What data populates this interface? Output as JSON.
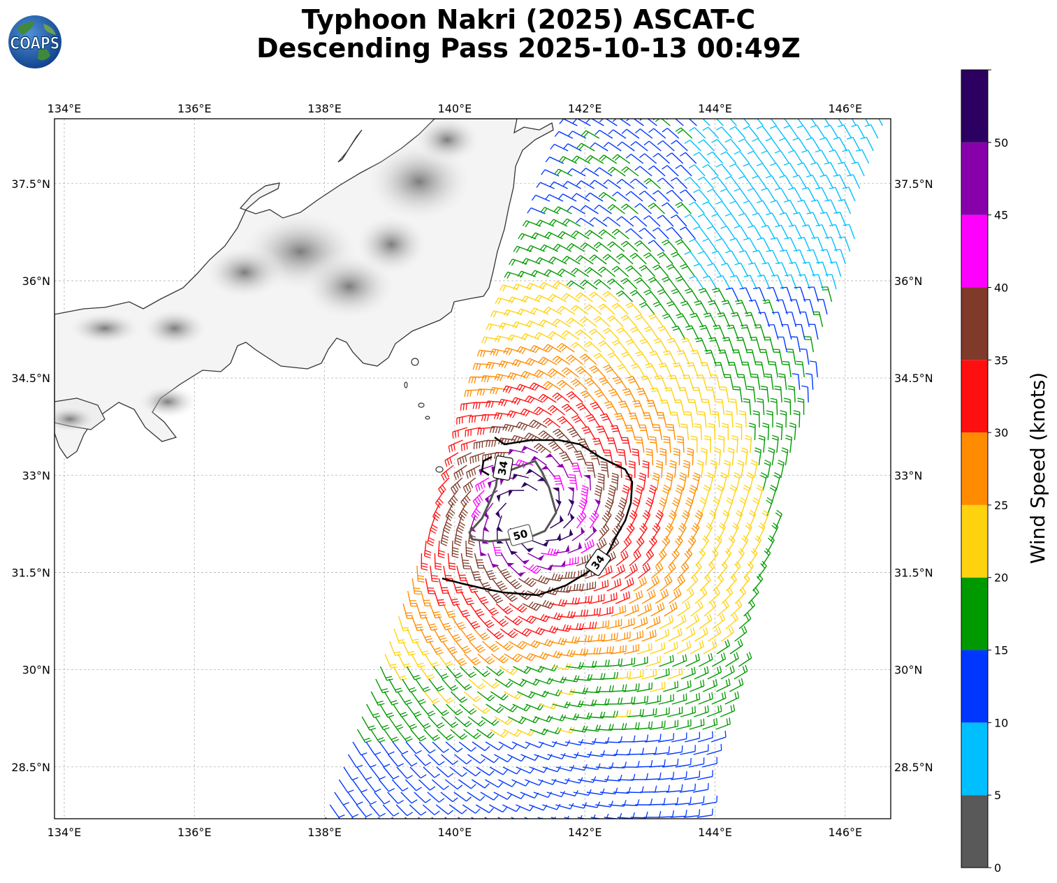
{
  "title_line1": "Typhoon Nakri (2025) ASCAT-C",
  "title_line2": "Descending Pass 2025-10-13 00:49Z",
  "logo_text": "COAPS",
  "lon_labels": [
    "134°E",
    "136°E",
    "138°E",
    "140°E",
    "142°E",
    "144°E",
    "146°E"
  ],
  "lon_values": [
    134,
    136,
    138,
    140,
    142,
    144,
    146
  ],
  "lat_labels": [
    "37.5°N",
    "36°N",
    "34.5°N",
    "33°N",
    "31.5°N",
    "30°N",
    "28.5°N"
  ],
  "lat_values": [
    37.5,
    36,
    34.5,
    33,
    31.5,
    30,
    28.5
  ],
  "map_extent": {
    "lon_min": 133.85,
    "lon_max": 146.7,
    "lat_min": 27.7,
    "lat_max": 38.5
  },
  "colorbar": {
    "label": "Wind Speed (knots)",
    "ticks": [
      "0",
      "5",
      "10",
      "15",
      "20",
      "25",
      "30",
      "35",
      "40",
      "45",
      "50"
    ],
    "bins": [
      {
        "range": "0-5",
        "color": "#595959"
      },
      {
        "range": "5-10",
        "color": "#00bfff"
      },
      {
        "range": "10-15",
        "color": "#0037ff"
      },
      {
        "range": "15-20",
        "color": "#009900"
      },
      {
        "range": "20-25",
        "color": "#ffd20f"
      },
      {
        "range": "25-30",
        "color": "#ff8c00"
      },
      {
        "range": "30-35",
        "color": "#ff1010"
      },
      {
        "range": "35-40",
        "color": "#7f3a2a"
      },
      {
        "range": "40-45",
        "color": "#ff00ff"
      },
      {
        "range": "45-50",
        "color": "#8800aa"
      },
      {
        "range": "50+",
        "color": "#2c0060"
      }
    ]
  },
  "contours": [
    {
      "level_label": "34",
      "color": "#000000"
    },
    {
      "level_label": "50",
      "color": "#555555"
    }
  ],
  "storm_center": {
    "lon": 141.2,
    "lat": 32.4
  }
}
